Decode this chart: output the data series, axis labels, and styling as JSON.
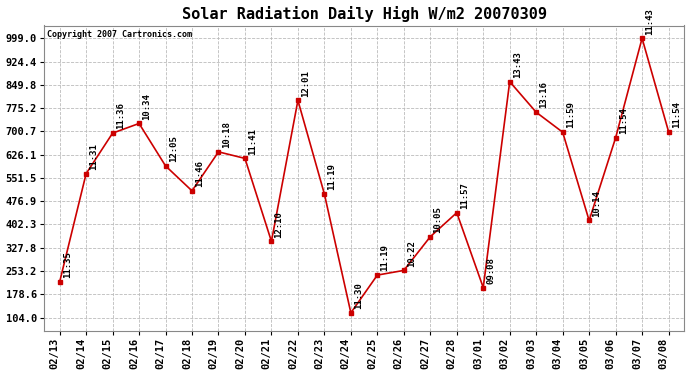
{
  "title": "Solar Radiation Daily High W/m2 20070309",
  "copyright": "Copyright 2007 Cartronics.com",
  "dates": [
    "02/13",
    "02/14",
    "02/15",
    "02/16",
    "02/17",
    "02/18",
    "02/19",
    "02/20",
    "02/21",
    "02/22",
    "02/23",
    "02/24",
    "02/25",
    "02/26",
    "02/27",
    "02/28",
    "03/01",
    "03/02",
    "03/03",
    "03/04",
    "03/05",
    "03/06",
    "03/07",
    "03/08"
  ],
  "values": [
    218,
    565,
    695,
    726,
    590,
    510,
    635,
    614,
    348,
    800,
    500,
    119,
    240,
    255,
    363,
    440,
    200,
    860,
    762,
    698,
    415,
    680,
    999,
    700
  ],
  "labels": [
    "11:35",
    "11:31",
    "11:36",
    "10:34",
    "12:05",
    "11:46",
    "10:18",
    "11:41",
    "12:10",
    "12:01",
    "11:19",
    "11:30",
    "11:19",
    "10:22",
    "10:05",
    "11:57",
    "09:08",
    "13:43",
    "13:16",
    "11:59",
    "10:14",
    "11:54",
    "11:43",
    "11:54"
  ],
  "line_color": "#cc0000",
  "marker_color": "#cc0000",
  "bg_color": "#ffffff",
  "grid_color": "#bbbbbb",
  "title_fontsize": 11,
  "label_fontsize": 6.5,
  "yticks": [
    104.0,
    178.6,
    253.2,
    327.8,
    402.3,
    476.9,
    551.5,
    626.1,
    700.7,
    775.2,
    849.8,
    924.4,
    999.0
  ],
  "ylim": [
    60,
    1040
  ],
  "xlabel_rotation": 90
}
